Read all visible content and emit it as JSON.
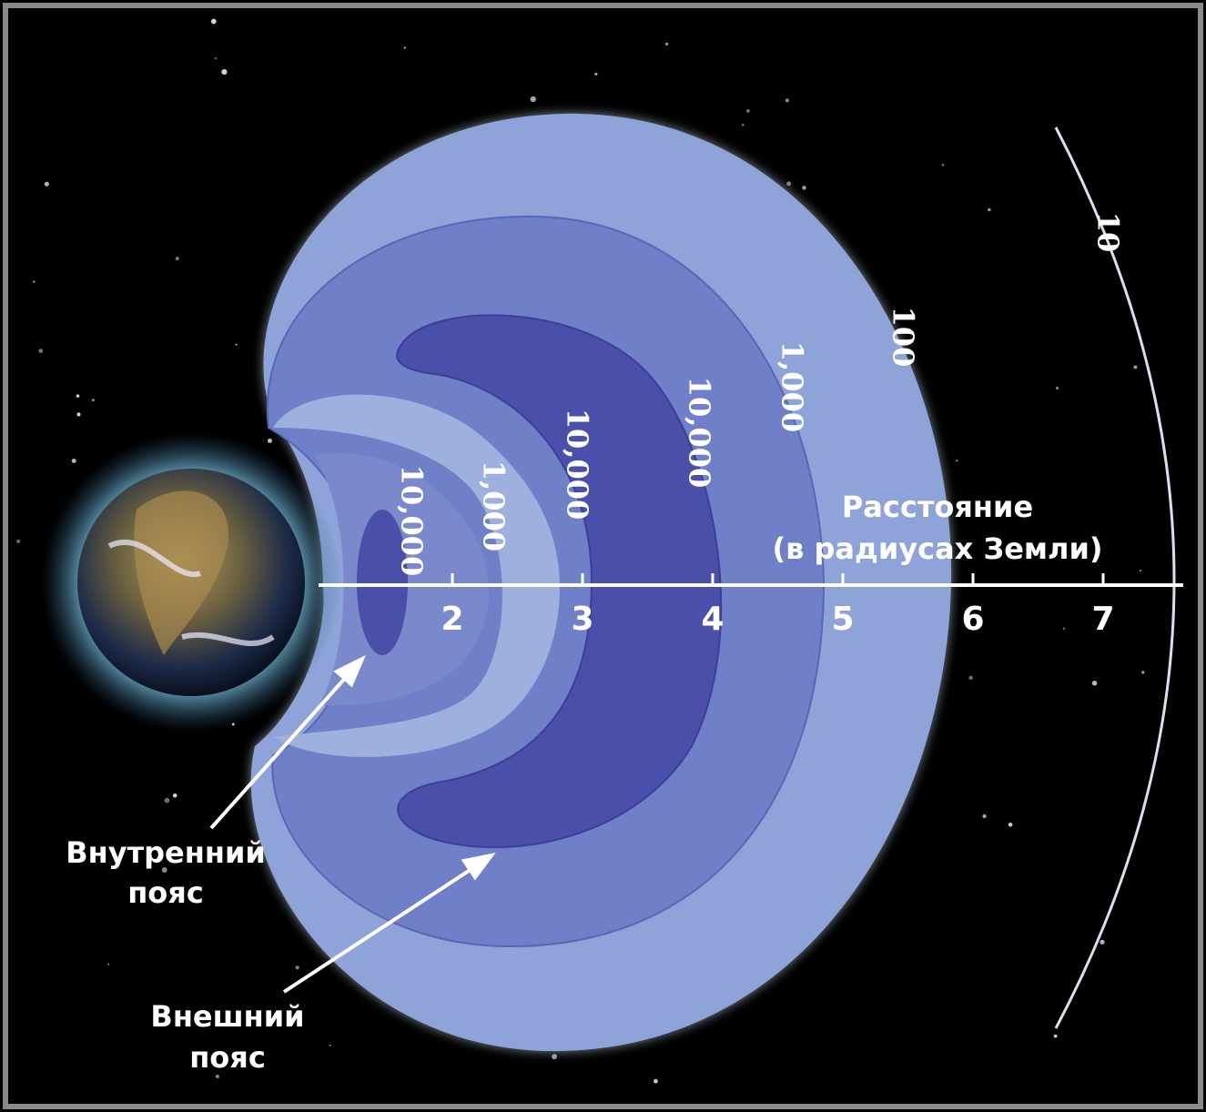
{
  "axis": {
    "title_line1": "Расстояние",
    "title_line2": "(в радиусах Земли)",
    "ticks": [
      2,
      3,
      4,
      5,
      6,
      7
    ]
  },
  "contour_labels": [
    "10,000",
    "1,000",
    "10,000",
    "10,000",
    "1,000",
    "100",
    "10"
  ],
  "inner_belt": {
    "line1": "Внутренний",
    "line2": "пояс"
  },
  "outer_belt": {
    "line1": "Внешний",
    "line2": "пояс"
  }
}
